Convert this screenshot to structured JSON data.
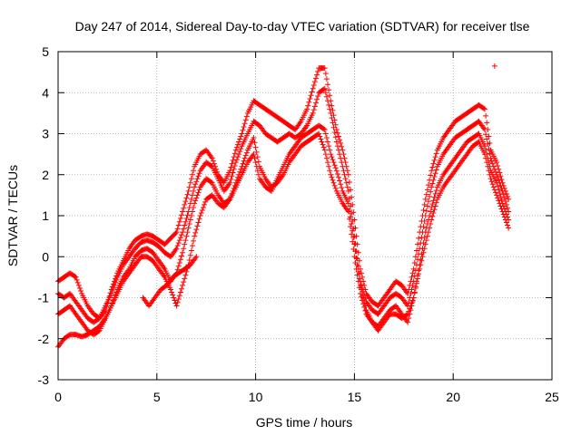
{
  "chart_data": {
    "type": "scatter",
    "title": "Day 247 of 2014, Sidereal Day-to-day VTEC variation (SDTVAR) for receiver tlse",
    "xlabel": "GPS time / hours",
    "ylabel": "SDTVAR / TECUs",
    "xlim": [
      0,
      25
    ],
    "ylim": [
      -3,
      5
    ],
    "xticks": [
      "0",
      "5",
      "10",
      "15",
      "20",
      "25"
    ],
    "yticks": [
      "-3",
      "-2",
      "-1",
      "0",
      "1",
      "2",
      "3",
      "4",
      "5"
    ],
    "grid": true,
    "marker": "+",
    "colors": {
      "series": "#ff0000",
      "grid": "#a0a0a0",
      "axis": "#000000"
    },
    "series": [
      {
        "x": [
          0.0,
          0.3,
          0.6,
          0.9,
          1.2,
          1.5,
          1.8,
          2.1,
          2.4,
          2.7,
          3.0,
          3.3,
          3.6,
          3.9,
          4.2,
          4.5,
          4.8,
          5.1,
          5.4,
          5.7,
          6.0,
          6.3,
          6.6,
          6.9,
          7.2,
          7.5,
          7.8,
          8.1,
          8.4,
          8.7,
          9.0,
          9.3,
          9.6,
          9.9,
          10.2,
          10.5,
          10.8,
          11.1,
          11.4,
          11.7,
          12.0,
          12.3,
          12.6,
          12.9,
          13.2,
          13.5,
          13.8,
          14.1,
          14.4,
          14.7,
          15.0,
          15.3,
          15.6,
          15.9,
          16.2,
          16.5,
          16.8,
          17.1,
          17.4,
          17.7,
          18.0,
          18.3,
          18.6,
          18.9,
          19.2,
          19.5,
          19.8,
          20.1,
          20.4,
          20.7,
          21.0,
          21.3,
          21.6,
          21.9,
          22.2,
          22.5,
          22.8
        ],
        "y": [
          -0.6,
          -0.5,
          -0.4,
          -0.5,
          -0.9,
          -1.2,
          -1.4,
          -1.5,
          -1.3,
          -0.8,
          -0.4,
          -0.1,
          0.2,
          0.4,
          0.5,
          0.55,
          0.5,
          0.4,
          0.3,
          0.45,
          0.6,
          1.1,
          1.6,
          2.2,
          2.5,
          2.6,
          2.4,
          2.0,
          1.8,
          2.1,
          2.6,
          3.0,
          3.5,
          3.8,
          3.7,
          3.6,
          3.5,
          3.4,
          3.3,
          3.2,
          3.1,
          3.3,
          3.6,
          4.1,
          4.6,
          4.6,
          3.8,
          3.1,
          2.6,
          2.0,
          0.9,
          -0.3,
          -0.9,
          -1.1,
          -1.2,
          -1.0,
          -0.8,
          -0.6,
          -0.7,
          -0.9,
          -0.3,
          0.6,
          1.4,
          2.1,
          2.6,
          2.9,
          3.1,
          3.3,
          3.4,
          3.5,
          3.6,
          3.7,
          3.6,
          2.6,
          2.3,
          1.8,
          1.4
        ]
      },
      {
        "x": [
          0.0,
          0.3,
          0.6,
          0.9,
          1.2,
          1.5,
          1.8,
          2.1,
          2.4,
          2.7,
          3.0,
          3.3,
          3.6,
          3.9,
          4.2,
          4.5,
          4.8,
          5.1,
          5.4,
          5.7,
          6.0,
          6.3,
          6.6,
          6.9,
          7.2,
          7.5,
          7.8,
          8.1,
          8.4,
          8.7,
          9.0,
          9.3,
          9.6,
          9.9,
          10.2,
          10.5,
          10.8,
          11.1,
          11.4,
          11.7,
          12.0,
          12.3,
          12.6,
          12.9,
          13.2,
          13.5,
          13.8,
          14.1,
          14.4,
          14.7,
          15.0,
          15.3,
          15.6,
          15.9,
          16.2,
          16.5,
          16.8,
          17.1,
          17.4,
          17.7,
          18.0,
          18.3,
          18.6,
          18.9,
          19.2,
          19.5,
          19.8,
          20.1,
          20.4,
          20.7,
          21.0,
          21.3,
          21.6,
          21.9,
          22.2,
          22.5,
          22.8
        ],
        "y": [
          -0.9,
          -1.0,
          -0.9,
          -1.1,
          -1.3,
          -1.5,
          -1.6,
          -1.5,
          -1.2,
          -0.9,
          -0.5,
          -0.2,
          0.0,
          0.2,
          0.35,
          0.4,
          0.35,
          0.25,
          0.1,
          0.0,
          0.2,
          0.6,
          1.1,
          1.7,
          2.1,
          2.3,
          2.2,
          1.9,
          1.6,
          1.8,
          2.3,
          2.7,
          3.0,
          3.3,
          3.2,
          3.0,
          2.9,
          2.8,
          2.9,
          3.0,
          2.9,
          3.0,
          3.2,
          3.5,
          4.0,
          4.1,
          3.5,
          2.8,
          2.2,
          1.6,
          0.5,
          -0.6,
          -1.1,
          -1.3,
          -1.4,
          -1.2,
          -1.0,
          -0.9,
          -1.0,
          -1.2,
          -0.6,
          0.2,
          1.0,
          1.7,
          2.2,
          2.5,
          2.7,
          2.9,
          3.0,
          3.1,
          3.2,
          3.3,
          3.1,
          2.4,
          2.0,
          1.6,
          1.1
        ]
      },
      {
        "x": [
          0.0,
          0.3,
          0.6,
          0.9,
          1.2,
          1.5,
          1.8,
          2.1,
          2.4,
          2.7,
          3.0,
          3.3,
          3.6,
          3.9,
          4.2,
          4.5,
          4.8,
          5.1,
          5.4,
          5.7,
          6.0,
          6.3,
          6.6,
          6.9,
          7.2,
          7.5,
          7.8,
          8.1,
          8.4,
          8.7,
          9.0,
          9.3,
          9.6,
          9.9,
          10.2,
          10.5,
          10.8,
          11.1,
          11.4,
          11.7,
          12.0,
          12.3,
          12.6,
          12.9,
          13.2,
          13.5,
          13.8,
          14.1,
          14.4,
          14.7,
          15.0,
          15.3,
          15.6,
          15.9,
          16.2,
          16.5,
          16.8,
          17.1,
          17.4,
          17.7,
          18.0,
          18.3,
          18.6,
          18.9,
          19.2,
          19.5,
          19.8,
          20.1,
          20.4,
          20.7,
          21.0,
          21.3,
          21.6,
          21.9,
          22.2,
          22.5,
          22.8
        ],
        "y": [
          -1.4,
          -1.3,
          -1.2,
          -1.4,
          -1.6,
          -1.8,
          -1.9,
          -1.8,
          -1.5,
          -1.2,
          -0.8,
          -0.5,
          -0.3,
          0.0,
          0.15,
          0.2,
          0.1,
          -0.1,
          -0.3,
          -0.6,
          -0.4,
          0.1,
          0.7,
          1.3,
          1.7,
          1.9,
          1.8,
          1.5,
          1.3,
          1.4,
          1.8,
          2.2,
          2.6,
          2.9,
          2.2,
          1.9,
          1.7,
          1.8,
          2.0,
          2.3,
          2.5,
          2.7,
          2.8,
          2.9,
          3.0,
          2.6,
          2.0,
          1.6,
          1.3,
          1.1,
          0.0,
          -0.9,
          -1.4,
          -1.6,
          -1.7,
          -1.5,
          -1.3,
          -1.2,
          -1.4,
          -1.6,
          -1.0,
          -0.2,
          0.6,
          1.2,
          1.7,
          2.0,
          2.2,
          2.4,
          2.6,
          2.8,
          2.9,
          3.0,
          2.7,
          2.1,
          1.8,
          1.3,
          0.9
        ]
      },
      {
        "x": [
          0.0,
          0.3,
          0.6,
          0.9,
          1.2,
          1.5,
          1.8,
          2.1,
          2.4,
          2.7,
          3.0,
          3.3,
          3.6,
          3.9,
          4.2,
          4.5,
          4.8,
          5.1,
          5.4,
          5.7,
          6.0,
          6.3,
          6.6,
          6.9,
          7.2,
          7.5,
          7.8,
          8.1,
          8.4,
          8.7,
          9.0,
          9.3,
          9.6,
          9.9,
          10.2,
          10.5,
          10.8,
          11.1,
          11.4,
          11.7,
          12.0,
          12.3,
          12.6,
          12.9,
          13.2,
          13.5,
          13.8,
          14.1,
          14.4,
          14.7,
          15.0,
          15.3,
          15.6,
          15.9,
          16.2,
          16.5,
          16.8,
          17.1,
          17.4,
          17.7,
          18.0,
          18.3,
          18.6,
          18.9,
          19.2,
          19.5,
          19.8,
          20.1,
          20.4,
          20.7,
          21.0,
          21.3,
          21.6,
          21.9,
          22.2,
          22.5,
          22.8
        ],
        "y": [
          -2.2,
          -2.0,
          -1.9,
          -1.9,
          -1.95,
          -1.9,
          -1.8,
          -1.7,
          -1.5,
          -1.2,
          -0.9,
          -0.6,
          -0.4,
          -0.2,
          0.0,
          0.0,
          -0.1,
          -0.3,
          -0.5,
          -0.8,
          -1.2,
          -0.7,
          -0.2,
          0.5,
          1.0,
          1.4,
          1.5,
          1.3,
          1.2,
          1.4,
          1.7,
          2.0,
          2.3,
          2.5,
          1.9,
          1.7,
          1.6,
          1.9,
          2.2,
          2.5,
          2.7,
          2.9,
          3.0,
          3.1,
          3.2,
          3.1,
          2.5,
          2.1,
          1.6,
          1.3,
          0.3,
          -0.7,
          -1.3,
          -1.6,
          -1.8,
          -1.6,
          -1.4,
          -1.4,
          -1.5,
          -1.4,
          -1.0,
          -0.3,
          0.3,
          0.9,
          1.4,
          1.7,
          1.9,
          2.1,
          2.3,
          2.5,
          2.7,
          2.8,
          2.5,
          1.9,
          1.5,
          1.1,
          0.7
        ]
      },
      {
        "x": [
          4.3,
          4.6,
          4.9,
          5.2,
          5.5,
          5.8,
          6.1,
          6.4,
          6.7,
          7.0
        ],
        "y": [
          -1.0,
          -1.2,
          -1.0,
          -0.8,
          -0.7,
          -0.5,
          -0.4,
          -0.3,
          -0.2,
          0.0
        ]
      },
      {
        "x": [
          22.1
        ],
        "y": [
          4.65
        ]
      }
    ]
  }
}
